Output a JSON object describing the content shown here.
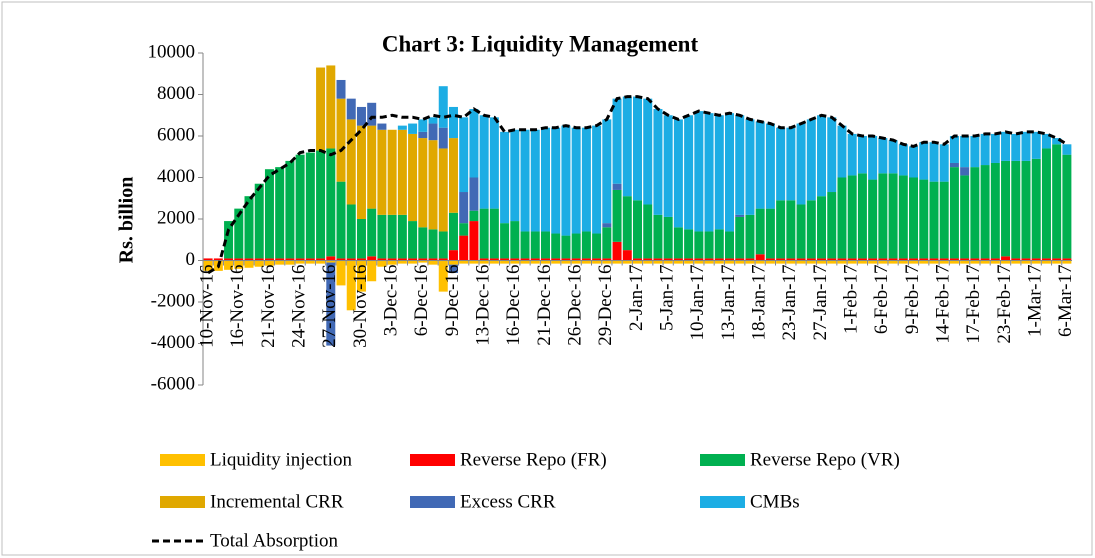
{
  "chart_data": {
    "type": "bar",
    "stacked": true,
    "title": "Chart 3: Liquidity Management",
    "y_label": "Rs. billion",
    "ylim": [
      -6000,
      10000
    ],
    "yticks": [
      -6000,
      -4000,
      -2000,
      0,
      2000,
      4000,
      6000,
      8000,
      10000
    ],
    "grid": false,
    "legend": "bottom",
    "categories": [
      "10-Nov-16",
      null,
      null,
      "16-Nov-16",
      null,
      null,
      "21-Nov-16",
      null,
      null,
      "24-Nov-16",
      null,
      null,
      "27-Nov-16",
      null,
      null,
      "30-Nov-16",
      null,
      null,
      "3-Dec-16",
      null,
      null,
      "6-Dec-16",
      null,
      null,
      "9-Dec-16",
      null,
      null,
      "13-Dec-16",
      null,
      null,
      "16-Dec-16",
      null,
      null,
      "21-Dec-16",
      null,
      null,
      "26-Dec-16",
      null,
      null,
      "29-Dec-16",
      null,
      null,
      "2-Jan-17",
      null,
      null,
      "5-Jan-17",
      null,
      null,
      "10-Jan-17",
      null,
      null,
      "13-Jan-17",
      null,
      null,
      "18-Jan-17",
      null,
      null,
      "23-Jan-17",
      null,
      null,
      "27-Jan-17",
      null,
      null,
      "1-Feb-17",
      null,
      null,
      "6-Feb-17",
      null,
      null,
      "9-Feb-17",
      null,
      null,
      "14-Feb-17",
      null,
      null,
      "17-Feb-17",
      null,
      null,
      "23-Feb-17",
      null,
      null,
      "1-Mar-17",
      null,
      null,
      "6-Mar-17"
    ],
    "series": [
      {
        "name": "Liquidity injection",
        "color": "#FFC000",
        "values": [
          -500,
          -500,
          -450,
          -400,
          -350,
          -300,
          -250,
          -200,
          -200,
          -150,
          -150,
          -150,
          -100,
          -1200,
          -2400,
          -1500,
          -1000,
          -300,
          -200,
          -150,
          -150,
          -100,
          -200,
          -1500,
          -200,
          -150,
          -150,
          -150,
          -150,
          -150,
          -150,
          -150,
          -150,
          -150,
          -150,
          -150,
          -150,
          -150,
          -150,
          -150,
          -150,
          -150,
          -150,
          -150,
          -150,
          -150,
          -150,
          -150,
          -150,
          -150,
          -150,
          -150,
          -150,
          -150,
          -150,
          -150,
          -150,
          -150,
          -150,
          -150,
          -150,
          -150,
          -150,
          -150,
          -150,
          -150,
          -150,
          -150,
          -150,
          -150,
          -150,
          -150,
          -150,
          -150,
          -150,
          -150,
          -150,
          -150,
          -150,
          -150,
          -150,
          -150,
          -150,
          -150,
          -150
        ]
      },
      {
        "name": "Reverse Repo (FR)",
        "color": "#FF0000",
        "values": [
          100,
          100,
          100,
          100,
          100,
          100,
          100,
          100,
          100,
          100,
          100,
          100,
          200,
          100,
          100,
          100,
          200,
          100,
          100,
          100,
          100,
          100,
          100,
          100,
          500,
          1200,
          1900,
          100,
          100,
          100,
          100,
          100,
          100,
          100,
          100,
          100,
          100,
          100,
          100,
          100,
          900,
          500,
          100,
          100,
          100,
          100,
          100,
          100,
          100,
          100,
          100,
          100,
          100,
          100,
          300,
          100,
          100,
          100,
          100,
          100,
          100,
          100,
          100,
          100,
          100,
          100,
          100,
          100,
          100,
          100,
          100,
          100,
          100,
          100,
          100,
          100,
          100,
          100,
          200,
          100,
          100,
          100,
          100,
          100,
          100
        ]
      },
      {
        "name": "Reverse Repo (VR)",
        "color": "#00B050",
        "values": [
          0,
          0,
          1800,
          2400,
          3000,
          3600,
          4300,
          4400,
          4700,
          5000,
          5100,
          5200,
          5200,
          3700,
          2600,
          1900,
          2300,
          2100,
          2100,
          2100,
          1800,
          1500,
          1400,
          1300,
          1800,
          600,
          500,
          2400,
          2400,
          1700,
          1800,
          1300,
          1300,
          1300,
          1200,
          1100,
          1200,
          1300,
          1200,
          1500,
          2500,
          2600,
          2800,
          2600,
          2100,
          2000,
          1500,
          1400,
          1300,
          1300,
          1400,
          1300,
          2000,
          2100,
          2200,
          2400,
          2800,
          2800,
          2600,
          2800,
          3000,
          3200,
          3900,
          4000,
          4100,
          3800,
          4100,
          4100,
          4000,
          3900,
          3800,
          3700,
          3700,
          4400,
          4000,
          4400,
          4500,
          4600,
          4600,
          4700,
          4700,
          4800,
          5300,
          5500,
          5000
        ]
      },
      {
        "name": "Incremental CRR",
        "color": "#E0A800",
        "values": [
          0,
          0,
          0,
          0,
          0,
          0,
          0,
          0,
          0,
          0,
          0,
          4000,
          4000,
          4000,
          4100,
          4500,
          4000,
          4100,
          4100,
          4100,
          4200,
          4300,
          4300,
          4000,
          3600,
          0,
          0,
          0,
          0,
          0,
          0,
          0,
          0,
          0,
          0,
          0,
          0,
          0,
          0,
          0,
          0,
          0,
          0,
          0,
          0,
          0,
          0,
          0,
          0,
          0,
          0,
          0,
          0,
          0,
          0,
          0,
          0,
          0,
          0,
          0,
          0,
          0,
          0,
          0,
          0,
          0,
          0,
          0,
          0,
          0,
          0,
          0,
          0,
          0,
          0,
          0,
          0,
          0,
          0,
          0,
          0,
          0,
          0,
          0,
          0
        ]
      },
      {
        "name": "Excess CRR",
        "color": "#4169B5",
        "values": [
          0,
          0,
          0,
          0,
          0,
          0,
          0,
          0,
          0,
          0,
          0,
          0,
          -4000,
          900,
          1000,
          900,
          1100,
          300,
          0,
          0,
          0,
          300,
          800,
          1000,
          -400,
          1500,
          1600,
          0,
          0,
          0,
          0,
          0,
          0,
          0,
          0,
          0,
          0,
          0,
          0,
          200,
          300,
          0,
          0,
          0,
          0,
          0,
          0,
          0,
          0,
          0,
          0,
          0,
          100,
          0,
          0,
          0,
          0,
          0,
          0,
          0,
          0,
          0,
          0,
          0,
          0,
          0,
          0,
          0,
          0,
          0,
          0,
          0,
          0,
          200,
          400,
          0,
          0,
          0,
          0,
          0,
          0,
          0,
          0,
          0,
          0
        ]
      },
      {
        "name": "CMBs",
        "color": "#1CADE4",
        "values": [
          0,
          0,
          0,
          0,
          0,
          0,
          0,
          0,
          0,
          0,
          0,
          0,
          0,
          0,
          0,
          0,
          0,
          0,
          0,
          200,
          500,
          600,
          300,
          2000,
          1500,
          3600,
          3300,
          4500,
          4400,
          4400,
          4400,
          4900,
          4900,
          5000,
          5100,
          5300,
          5100,
          5000,
          5200,
          5000,
          4100,
          4800,
          5000,
          5100,
          5100,
          4900,
          5200,
          5500,
          5800,
          5700,
          5500,
          5700,
          4800,
          4600,
          4200,
          4100,
          3500,
          3500,
          3900,
          3900,
          3900,
          3600,
          2500,
          2000,
          1800,
          2100,
          1700,
          1600,
          1500,
          1500,
          1800,
          1900,
          1800,
          1300,
          1500,
          1500,
          1500,
          1400,
          1400,
          1300,
          1400,
          1300,
          700,
          300,
          500
        ]
      }
    ],
    "lines": [
      {
        "name": "Total Absorption",
        "color": "#000000",
        "dash": true,
        "values": [
          -600,
          -300,
          1500,
          2200,
          2900,
          3500,
          4100,
          4400,
          4700,
          5200,
          5300,
          5300,
          5100,
          5300,
          5800,
          6300,
          6900,
          6900,
          7000,
          6900,
          6900,
          6800,
          7000,
          6900,
          7000,
          6900,
          7300,
          7000,
          6900,
          6200,
          6300,
          6300,
          6300,
          6400,
          6400,
          6500,
          6400,
          6400,
          6500,
          6800,
          7800,
          7900,
          7900,
          7800,
          7300,
          7000,
          6800,
          7000,
          7200,
          7100,
          7000,
          7100,
          7000,
          6800,
          6700,
          6600,
          6400,
          6400,
          6600,
          6800,
          7000,
          6900,
          6500,
          6100,
          6000,
          6000,
          5900,
          5800,
          5600,
          5500,
          5700,
          5700,
          5600,
          6000,
          6000,
          6000,
          6100,
          6100,
          6200,
          6100,
          6200,
          6200,
          6100,
          5900,
          5600
        ]
      }
    ]
  }
}
